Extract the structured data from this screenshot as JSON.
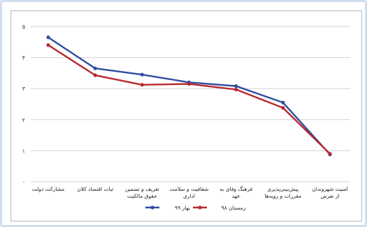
{
  "chart_data": {
    "type": "line",
    "title": "",
    "xlabel": "",
    "ylabel": "",
    "ylim": [
      0,
      5
    ],
    "yticks": [
      "۰",
      "۱",
      "۲",
      "۳",
      "۴",
      "۵"
    ],
    "grid": true,
    "legend_position": "bottom",
    "categories": [
      "مشارکت دولت",
      "ثبات اقتصاد کلان",
      "تعریف و تضمین حقوق مالکیت",
      "شفافیت و سلامت اداری",
      "فرهنگ وفای به عهد",
      "پیش‌بینی‌پذیری مقررات و رویه‌ها",
      "امنیت شهروندان از تعرض"
    ],
    "category_lines": [
      [
        "مشارکت دولت"
      ],
      [
        "ثبات اقتصاد کلان"
      ],
      [
        "تعریف و تضمین",
        "حقوق مالکیت"
      ],
      [
        "شفافیت و سلامت",
        "اداری"
      ],
      [
        "فرهنگ وفای به",
        "عهد"
      ],
      [
        "پیش‌بینی‌پذیری",
        "مقررات و رویه‌ها"
      ],
      [
        "امنیت شهروندان",
        "از تعرض"
      ]
    ],
    "series": [
      {
        "name": "بهار ۹۹",
        "color": "#2e4da0",
        "values": [
          4.65,
          3.65,
          3.45,
          3.2,
          3.08,
          2.55,
          0.88
        ]
      },
      {
        "name": "زمستان ۹۸",
        "color": "#b8282e",
        "values": [
          4.4,
          3.43,
          3.12,
          3.15,
          2.97,
          2.38,
          0.9
        ]
      }
    ]
  }
}
